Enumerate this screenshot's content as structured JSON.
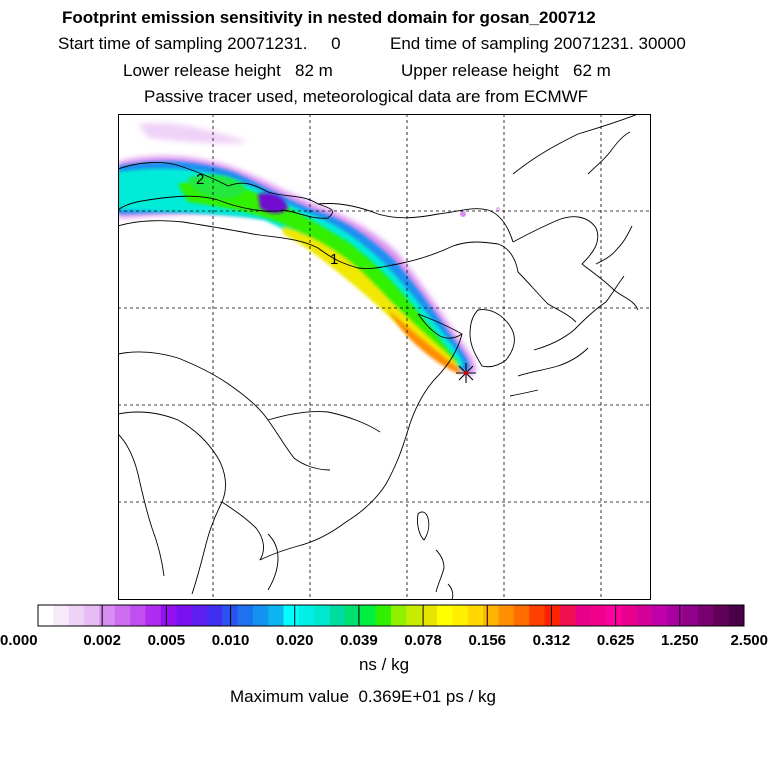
{
  "header": {
    "title": "Footprint emission sensitivity in nested domain for gosan_200712",
    "start_time": "Start time of sampling 20071231.     0",
    "end_time": "End time of sampling 20071231. 30000",
    "lower_release": "Lower release height   82 m",
    "upper_release": "Upper release height   62 m",
    "tracer_info": "Passive tracer used, meteorological data are from ECMWF"
  },
  "map": {
    "plume_labels": [
      "2",
      "1"
    ],
    "receptor": "gosan-receptor-star",
    "colors": {
      "coast": "#000000",
      "grid": "#000000"
    }
  },
  "colorbar": {
    "tick_labels": [
      "0.000",
      "0.002",
      "0.005",
      "0.010",
      "0.020",
      "0.039",
      "0.078",
      "0.156",
      "0.312",
      "0.625",
      "1.250",
      "2.500"
    ],
    "colors": [
      "#ffffff",
      "#f7e8fb",
      "#efd2f7",
      "#e6bcf3",
      "#d88ef0",
      "#cd6ef0",
      "#c04ef0",
      "#b02cf0",
      "#9510f0",
      "#7a10f0",
      "#5f1ef0",
      "#3f2ef0",
      "#2a52f0",
      "#1e72f0",
      "#1492f0",
      "#0eb4f0",
      "#00ffff",
      "#00f0e8",
      "#00e8d0",
      "#00dca0",
      "#00e070",
      "#00f040",
      "#30f000",
      "#90f000",
      "#c8ec00",
      "#e8e600",
      "#ffff00",
      "#fff000",
      "#ffd800",
      "#ffb400",
      "#ff9000",
      "#ff6c00",
      "#ff4000",
      "#ff2200",
      "#f01050",
      "#e80088",
      "#f0008c",
      "#ff00a0",
      "#e8008c",
      "#d4009a",
      "#c000a8",
      "#a800a0",
      "#900088",
      "#780070",
      "#600058",
      "#4a0046"
    ],
    "units": "ns / kg",
    "max_value": "Maximum value  0.369E+01 ps / kg"
  }
}
